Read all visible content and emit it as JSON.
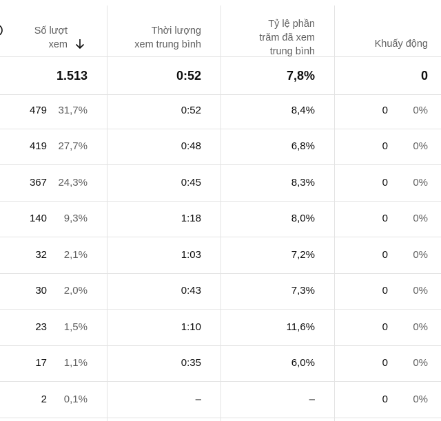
{
  "table": {
    "columns": [
      {
        "lines": [
          "Số lượt",
          "xem"
        ]
      },
      {
        "lines": [
          "Thời lượng",
          "xem trung bình"
        ]
      },
      {
        "lines": [
          "Tỷ lệ phần",
          "trăm đã xem",
          "trung bình"
        ]
      },
      {
        "lines": [
          "Khuấy động"
        ]
      }
    ],
    "totals": [
      "1.513",
      "0:52",
      "7,8%",
      "0"
    ],
    "rows": [
      {
        "views": "479",
        "views_pct": "31,7%",
        "avg_duration": "0:52",
        "avg_pct": "8,4%",
        "engagement": "0",
        "engagement_pct": "0%"
      },
      {
        "views": "419",
        "views_pct": "27,7%",
        "avg_duration": "0:48",
        "avg_pct": "6,8%",
        "engagement": "0",
        "engagement_pct": "0%"
      },
      {
        "views": "367",
        "views_pct": "24,3%",
        "avg_duration": "0:45",
        "avg_pct": "8,3%",
        "engagement": "0",
        "engagement_pct": "0%"
      },
      {
        "views": "140",
        "views_pct": "9,3%",
        "avg_duration": "1:18",
        "avg_pct": "8,0%",
        "engagement": "0",
        "engagement_pct": "0%"
      },
      {
        "views": "32",
        "views_pct": "2,1%",
        "avg_duration": "1:03",
        "avg_pct": "7,2%",
        "engagement": "0",
        "engagement_pct": "0%"
      },
      {
        "views": "30",
        "views_pct": "2,0%",
        "avg_duration": "0:43",
        "avg_pct": "7,3%",
        "engagement": "0",
        "engagement_pct": "0%"
      },
      {
        "views": "23",
        "views_pct": "1,5%",
        "avg_duration": "1:10",
        "avg_pct": "11,6%",
        "engagement": "0",
        "engagement_pct": "0%"
      },
      {
        "views": "17",
        "views_pct": "1,1%",
        "avg_duration": "0:35",
        "avg_pct": "6,0%",
        "engagement": "0",
        "engagement_pct": "0%"
      },
      {
        "views": "2",
        "views_pct": "0,1%",
        "avg_duration": "–",
        "avg_pct": "–",
        "engagement": "0",
        "engagement_pct": "0%"
      }
    ]
  }
}
